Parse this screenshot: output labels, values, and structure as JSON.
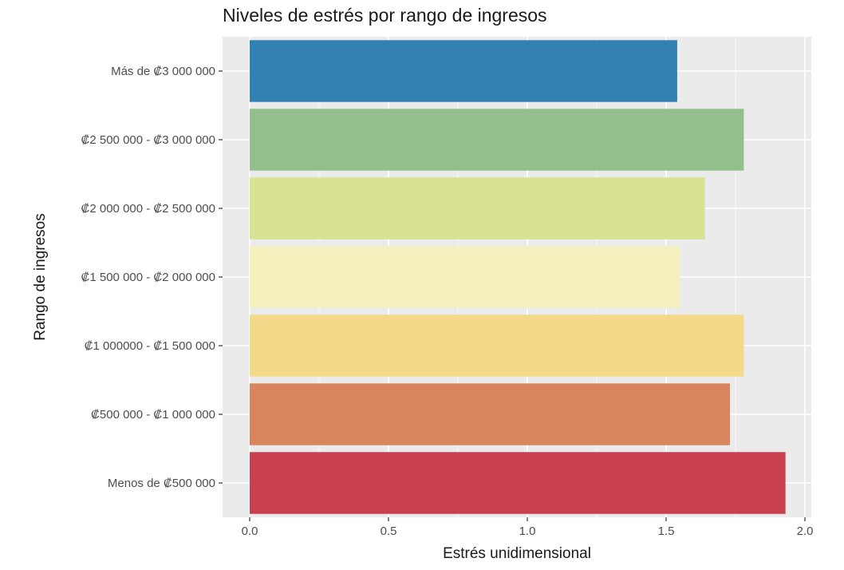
{
  "chart_data": {
    "type": "bar",
    "orientation": "horizontal",
    "title": "Niveles de estrés por rango de ingresos",
    "xlabel": "Estrés unidimensional",
    "ylabel": "Rango de ingresos",
    "xlim": [
      0,
      2.0
    ],
    "x_ticks": [
      "0.0",
      "0.5",
      "1.0",
      "1.5",
      "2.0"
    ],
    "grid": true,
    "categories": [
      "Más de ₡3 000 000",
      "₡2 500 000 - ₡3 000 000",
      "₡2 000 000 - ₡2 500 000",
      "₡1 500 000 - ₡2 000 000",
      "₡1 000000 - ₡1 500 000",
      "₡500 000 - ₡1 000 000",
      "Menos de ₡500 000"
    ],
    "values": [
      1.54,
      1.78,
      1.64,
      1.55,
      1.78,
      1.73,
      1.93
    ],
    "colors": [
      "#3280b2",
      "#92bf8c",
      "#d9e293",
      "#f5f1bf",
      "#f4d98b",
      "#d8855e",
      "#c8404f"
    ]
  }
}
